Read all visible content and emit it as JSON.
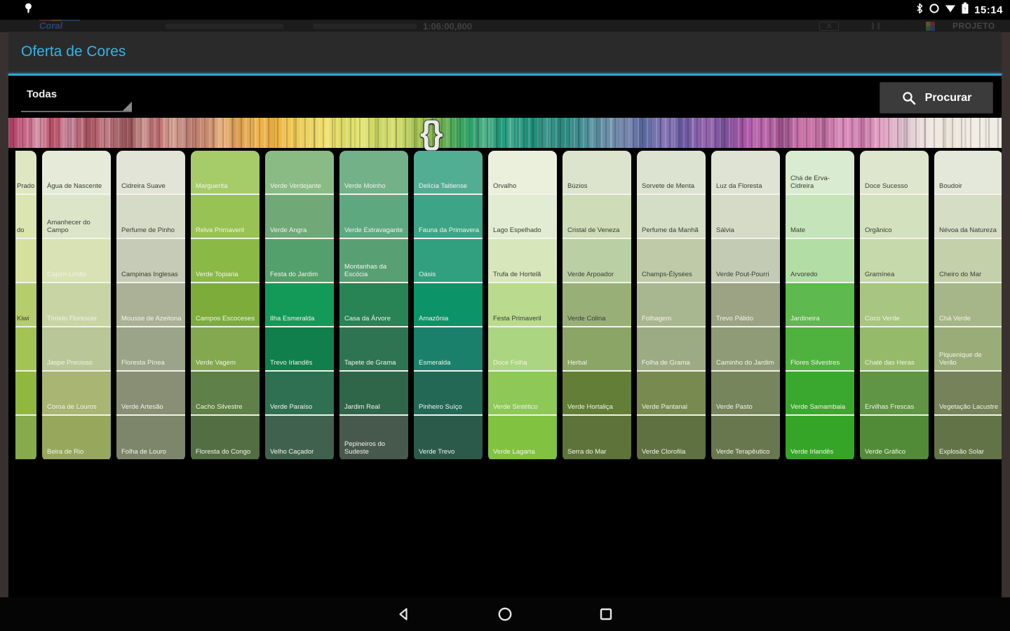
{
  "status_bar": {
    "time": "15:14",
    "icons": [
      "notification",
      "bluetooth",
      "alarm",
      "wifi",
      "battery"
    ]
  },
  "background_app": {
    "brand": "Coral",
    "timestamp": "1:06:00,800",
    "project_label": "PROJETO"
  },
  "dialog": {
    "title": "Oferta de Cores",
    "accent_color": "#35b4e5",
    "filter": {
      "value": "Todas"
    },
    "search": {
      "label": "Procurar"
    }
  },
  "spectrum": {
    "slider_position": 0.425,
    "stops": [
      [
        0,
        "#a63a5e"
      ],
      [
        1.5,
        "#c85f82"
      ],
      [
        3,
        "#d493a8"
      ],
      [
        4.5,
        "#b84a62"
      ],
      [
        6,
        "#c98ba0"
      ],
      [
        8,
        "#a8505c"
      ],
      [
        10,
        "#c27d86"
      ],
      [
        12,
        "#8f4a50"
      ],
      [
        13.5,
        "#c9938e"
      ],
      [
        15,
        "#b8666a"
      ],
      [
        16.5,
        "#d9a797"
      ],
      [
        18,
        "#b87b72"
      ],
      [
        20,
        "#c98a6f"
      ],
      [
        21.5,
        "#e8b480"
      ],
      [
        23,
        "#d99a50"
      ],
      [
        25,
        "#f0b854"
      ],
      [
        26.5,
        "#e8a93c"
      ],
      [
        28,
        "#f2c44e"
      ],
      [
        30,
        "#ead060"
      ],
      [
        32,
        "#f0e070"
      ],
      [
        34,
        "#d8d862"
      ],
      [
        35.5,
        "#e8e878"
      ],
      [
        37,
        "#c8d25e"
      ],
      [
        39,
        "#d8e070"
      ],
      [
        40.5,
        "#b0c858"
      ],
      [
        42,
        "#98c050"
      ],
      [
        43.5,
        "#70b050"
      ],
      [
        45,
        "#48a858"
      ],
      [
        46.5,
        "#2ba06a"
      ],
      [
        48,
        "#52b088"
      ],
      [
        49.5,
        "#1e9878"
      ],
      [
        51,
        "#40a890"
      ],
      [
        52.5,
        "#188874"
      ],
      [
        54,
        "#3a9488"
      ],
      [
        56,
        "#2a8880"
      ],
      [
        58,
        "#4a9098"
      ],
      [
        60,
        "#6890a8"
      ],
      [
        62,
        "#7888b0"
      ],
      [
        64,
        "#5868a0"
      ],
      [
        66,
        "#8878b8"
      ],
      [
        68,
        "#6858a0"
      ],
      [
        70,
        "#9868b0"
      ],
      [
        72,
        "#785098"
      ],
      [
        74,
        "#a858a8"
      ],
      [
        76,
        "#c068b0"
      ],
      [
        78,
        "#985088"
      ],
      [
        80,
        "#d078b0"
      ],
      [
        82,
        "#b86898"
      ],
      [
        84,
        "#e090c0"
      ],
      [
        86,
        "#c878a8"
      ],
      [
        88,
        "#e8a8c8"
      ],
      [
        90,
        "#d8b8c8"
      ],
      [
        91.5,
        "#e8d8d8"
      ],
      [
        93,
        "#f0e8e0"
      ],
      [
        95,
        "#ece4d8"
      ],
      [
        97,
        "#f2ede4"
      ],
      [
        100,
        "#eeebe2"
      ]
    ]
  },
  "columns": [
    {
      "partial": true,
      "swatches": [
        {
          "name": "Prado",
          "color": "#dfe7c2",
          "text": "dark"
        },
        {
          "name": "do",
          "color": "#dbe5b1",
          "text": "dark"
        },
        {
          "name": "",
          "color": "#d4e09c",
          "text": "dark"
        },
        {
          "name": "Kiwi",
          "color": "#b6cd6d",
          "text": "dark"
        },
        {
          "name": "",
          "color": "#a4c355",
          "text": "light"
        },
        {
          "name": "",
          "color": "#90b83e",
          "text": "light"
        },
        {
          "name": "",
          "color": "#87aa4b",
          "text": "light"
        }
      ]
    },
    {
      "partial": false,
      "swatches": [
        {
          "name": "Água de Nascente",
          "color": "#e5ebd8",
          "text": "dark"
        },
        {
          "name": "Amanhecer do Campo",
          "color": "#dde5c9",
          "text": "dark"
        },
        {
          "name": "Capim-Limão",
          "color": "#d8e2b4",
          "text": "light"
        },
        {
          "name": "Tímido Florescer",
          "color": "#c9d4a5",
          "text": "light"
        },
        {
          "name": "Jaspe Precioso",
          "color": "#b9c697",
          "text": "light"
        },
        {
          "name": "Coroa de Louros",
          "color": "#a8b573",
          "text": "light"
        },
        {
          "name": "Beira de Rio",
          "color": "#97a75c",
          "text": "light"
        }
      ]
    },
    {
      "partial": false,
      "swatches": [
        {
          "name": "Cidreira Suave",
          "color": "#e1e4d7",
          "text": "dark"
        },
        {
          "name": "Perfume de Pinho",
          "color": "#d6dbc8",
          "text": "dark"
        },
        {
          "name": "Campinas Inglesas",
          "color": "#c5cbb6",
          "text": "dark"
        },
        {
          "name": "Mousse de Azeitona",
          "color": "#aab197",
          "text": "light"
        },
        {
          "name": "Floresta Pínea",
          "color": "#9ba389",
          "text": "light"
        },
        {
          "name": "Verde Artesão",
          "color": "#888f75",
          "text": "light"
        },
        {
          "name": "Folha de Louro",
          "color": "#7d866b",
          "text": "light"
        }
      ]
    },
    {
      "partial": false,
      "swatches": [
        {
          "name": "Marguerita",
          "color": "#a6cc6a",
          "text": "light"
        },
        {
          "name": "Relva Primaveril",
          "color": "#98c354",
          "text": "light"
        },
        {
          "name": "Verde Topiaria",
          "color": "#8bb945",
          "text": "light"
        },
        {
          "name": "Campos Escoceses",
          "color": "#7dac3b",
          "text": "light"
        },
        {
          "name": "Verde Vagem",
          "color": "#84a84f",
          "text": "light"
        },
        {
          "name": "Cacho Silvestre",
          "color": "#5f8048",
          "text": "light"
        },
        {
          "name": "Floresta do Congo",
          "color": "#546e44",
          "text": "light"
        }
      ]
    },
    {
      "partial": false,
      "swatches": [
        {
          "name": "Verde Verdejante",
          "color": "#8abb85",
          "text": "light"
        },
        {
          "name": "Verde Angra",
          "color": "#70a878",
          "text": "light"
        },
        {
          "name": "Festa do Jardim",
          "color": "#54a06c",
          "text": "light"
        },
        {
          "name": "Ilha Esmeralda",
          "color": "#149a58",
          "text": "light"
        },
        {
          "name": "Trevo Irlandês",
          "color": "#107f4b",
          "text": "light"
        },
        {
          "name": "Verde Paraíso",
          "color": "#2f7052",
          "text": "light"
        },
        {
          "name": "Velho Caçador",
          "color": "#40614e",
          "text": "light"
        }
      ]
    },
    {
      "partial": false,
      "swatches": [
        {
          "name": "Verde Moinho",
          "color": "#73b189",
          "text": "light"
        },
        {
          "name": "Verde Extravagante",
          "color": "#5ea880",
          "text": "light"
        },
        {
          "name": "Montanhas da Escócia",
          "color": "#58a074",
          "text": "light"
        },
        {
          "name": "Casa da Árvore",
          "color": "#288355",
          "text": "light"
        },
        {
          "name": "Tapete de Grama",
          "color": "#2e7452",
          "text": "light"
        },
        {
          "name": "Jardim Real",
          "color": "#2f6549",
          "text": "light"
        },
        {
          "name": "Pepineiros do Sudeste",
          "color": "#47594c",
          "text": "light"
        }
      ]
    },
    {
      "partial": false,
      "swatches": [
        {
          "name": "Delícia Taitiense",
          "color": "#52ae92",
          "text": "light"
        },
        {
          "name": "Fauna da Primavera",
          "color": "#3da487",
          "text": "light"
        },
        {
          "name": "Oásis",
          "color": "#30a07e",
          "text": "light"
        },
        {
          "name": "Amazônia",
          "color": "#0c9368",
          "text": "light"
        },
        {
          "name": "Esmeralda",
          "color": "#1a806b",
          "text": "light"
        },
        {
          "name": "Pinheiro Suíço",
          "color": "#236854",
          "text": "light"
        },
        {
          "name": "Verde Trevo",
          "color": "#2b5a4b",
          "text": "light"
        }
      ]
    },
    {
      "partial": false,
      "swatches": [
        {
          "name": "Orvalho",
          "color": "#eaf0dc",
          "text": "dark"
        },
        {
          "name": "Lago Espelhado",
          "color": "#e2ecd2",
          "text": "dark"
        },
        {
          "name": "Trufa de Hortelã",
          "color": "#d7e7bb",
          "text": "dark"
        },
        {
          "name": "Festa Primaveril",
          "color": "#badb8e",
          "text": "dark"
        },
        {
          "name": "Doce Folha",
          "color": "#abd580",
          "text": "light"
        },
        {
          "name": "Verde Sintético",
          "color": "#8ec857",
          "text": "light"
        },
        {
          "name": "Verde Lagarta",
          "color": "#81c240",
          "text": "light"
        }
      ]
    },
    {
      "partial": false,
      "swatches": [
        {
          "name": "Búzios",
          "color": "#dce4ce",
          "text": "dark"
        },
        {
          "name": "Cristal de Veneza",
          "color": "#cedcb7",
          "text": "dark"
        },
        {
          "name": "Verde Arpoador",
          "color": "#bbcfa4",
          "text": "dark"
        },
        {
          "name": "Verde Colina",
          "color": "#98b078",
          "text": "dark"
        },
        {
          "name": "Herbal",
          "color": "#8ba566",
          "text": "light"
        },
        {
          "name": "Verde Hortaliça",
          "color": "#627e37",
          "text": "light"
        },
        {
          "name": "Serra do Mar",
          "color": "#5e7339",
          "text": "light"
        }
      ]
    },
    {
      "partial": false,
      "swatches": [
        {
          "name": "Sorvete de Menta",
          "color": "#dde3d1",
          "text": "dark"
        },
        {
          "name": "Perfume da Manhã",
          "color": "#d4ddc5",
          "text": "dark"
        },
        {
          "name": "Champs-Élysées",
          "color": "#bfcaa9",
          "text": "dark"
        },
        {
          "name": "Folhagem",
          "color": "#a9b791",
          "text": "light"
        },
        {
          "name": "Folha de Grama",
          "color": "#9dab85",
          "text": "light"
        },
        {
          "name": "Verde Pantanal",
          "color": "#788a50",
          "text": "light"
        },
        {
          "name": "Verde Clorofila",
          "color": "#5f7041",
          "text": "light"
        }
      ]
    },
    {
      "partial": false,
      "swatches": [
        {
          "name": "Luz da Floresta",
          "color": "#dfe3d3",
          "text": "dark"
        },
        {
          "name": "Sálvia",
          "color": "#d6dbc7",
          "text": "dark"
        },
        {
          "name": "Verde Pout-Pourri",
          "color": "#c3cbb5",
          "text": "dark"
        },
        {
          "name": "Trevo Pálido",
          "color": "#9ba384",
          "text": "light"
        },
        {
          "name": "Caminho do Jardim",
          "color": "#8f9b77",
          "text": "light"
        },
        {
          "name": "Verde Pasto",
          "color": "#77855d",
          "text": "light"
        },
        {
          "name": "Verde Terapêutico",
          "color": "#69774f",
          "text": "light"
        }
      ]
    },
    {
      "partial": false,
      "swatches": [
        {
          "name": "Chá de Erva-Cidreira",
          "color": "#d9ebd1",
          "text": "dark"
        },
        {
          "name": "Mate",
          "color": "#c6e4ba",
          "text": "dark"
        },
        {
          "name": "Arvoredo",
          "color": "#b2dea6",
          "text": "dark"
        },
        {
          "name": "Jardineira",
          "color": "#5eb94e",
          "text": "light"
        },
        {
          "name": "Flores Silvestres",
          "color": "#4fb23e",
          "text": "light"
        },
        {
          "name": "Verde Samambaia",
          "color": "#3aa82e",
          "text": "light"
        },
        {
          "name": "Verde Irlandês",
          "color": "#35a527",
          "text": "light"
        }
      ]
    },
    {
      "partial": false,
      "swatches": [
        {
          "name": "Doce Sucesso",
          "color": "#dee7ce",
          "text": "dark"
        },
        {
          "name": "Orgânico",
          "color": "#d3e1be",
          "text": "dark"
        },
        {
          "name": "Gramínea",
          "color": "#c6d9ab",
          "text": "dark"
        },
        {
          "name": "Coco Verde",
          "color": "#a8c582",
          "text": "light"
        },
        {
          "name": "Chalé das Heras",
          "color": "#95ba6a",
          "text": "light"
        },
        {
          "name": "Ervilhas Frescas",
          "color": "#5f9544",
          "text": "light"
        },
        {
          "name": "Verde Gráfico",
          "color": "#518b37",
          "text": "light"
        }
      ]
    },
    {
      "partial": false,
      "swatches": [
        {
          "name": "Boudoir",
          "color": "#e3e8da",
          "text": "dark"
        },
        {
          "name": "Névoa da Natureza",
          "color": "#d5ddc5",
          "text": "dark"
        },
        {
          "name": "Cheiro do Mar",
          "color": "#c3d0aa",
          "text": "dark"
        },
        {
          "name": "Chá Verde",
          "color": "#a6b689",
          "text": "light"
        },
        {
          "name": "Piquenique de Verão",
          "color": "#9aad79",
          "text": "light"
        },
        {
          "name": "Vegetação Lacustre",
          "color": "#75825a",
          "text": "light"
        },
        {
          "name": "Explosão Solar",
          "color": "#627447",
          "text": "light"
        }
      ]
    }
  ],
  "nav_bar": {
    "icons": [
      "back",
      "home",
      "recents"
    ]
  }
}
